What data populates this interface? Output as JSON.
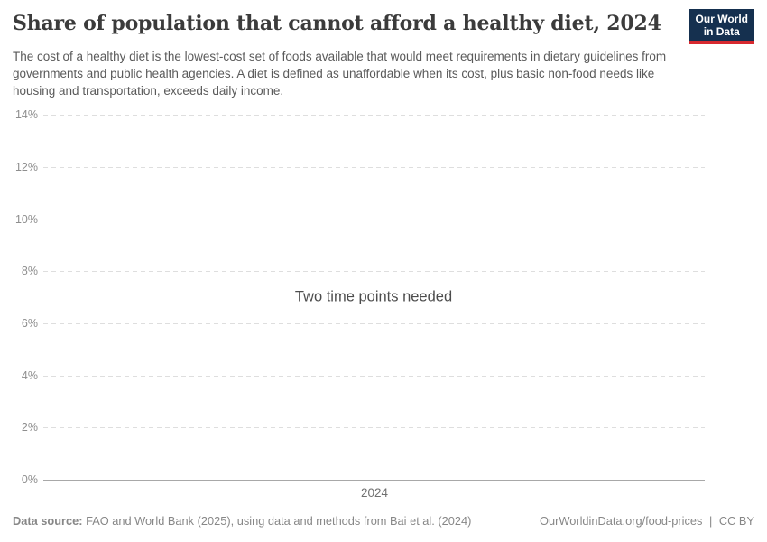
{
  "header": {
    "title": "Share of population that cannot afford a healthy diet, 2024",
    "subtitle": "The cost of a healthy diet is the lowest-cost set of foods available that would meet requirements in dietary guidelines from governments and public health agencies. A diet is defined as unaffordable when its cost, plus basic non-food needs like housing and transportation, exceeds daily income.",
    "logo": {
      "line1": "Our World",
      "line2": "in Data"
    }
  },
  "chart_data": {
    "type": "line",
    "title": "Share of population that cannot afford a healthy diet, 2024",
    "series": [],
    "message": "Two time points needed",
    "x_ticks": [
      "2024"
    ],
    "y_ticks": [
      "0%",
      "2%",
      "4%",
      "6%",
      "8%",
      "10%",
      "12%",
      "14%"
    ],
    "ylim": [
      0,
      14
    ],
    "xlabel": "",
    "ylabel": "",
    "grid": "horizontal dashed",
    "legend": "none"
  },
  "colors": {
    "logo_bg": "#15304f",
    "logo_accent": "#d7292f",
    "title_text": "#3b3b3b",
    "subtitle_text": "#5a5a5a",
    "grid_line": "#dedede",
    "zero_axis_line": "#a8a8a8",
    "y_tick_label": "#8e8e8e",
    "x_tick_label": "#707070",
    "message_text": "#4c4c4c",
    "footer_text": "#878787"
  },
  "footer": {
    "source_label": "Data source:",
    "source_text": "FAO and World Bank (2025), using data and methods from Bai et al. (2024)",
    "link": "OurWorldinData.org/food-prices",
    "divider": "|",
    "license": "CC BY"
  }
}
